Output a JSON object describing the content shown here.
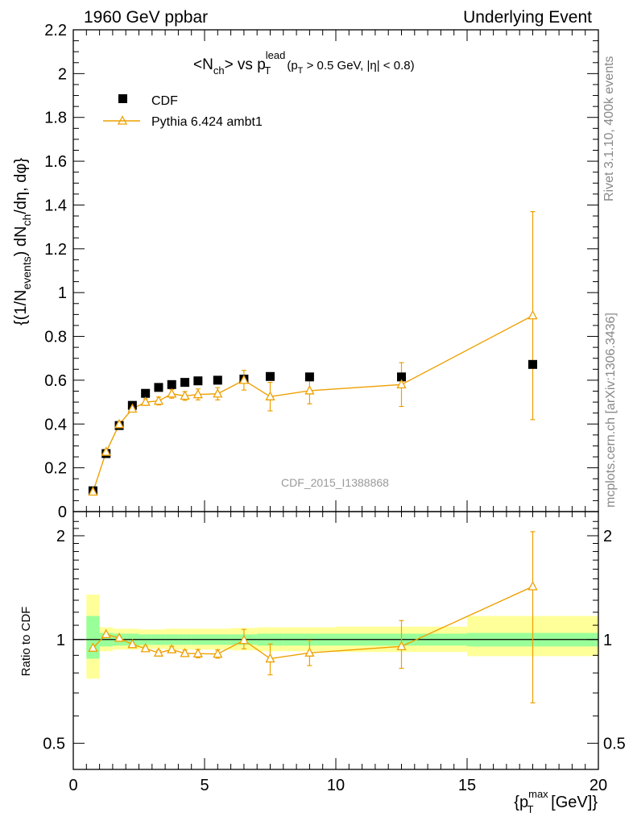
{
  "header": {
    "left": "1960 GeV ppbar",
    "right": "Underlying Event"
  },
  "side_labels": {
    "rivet": "Rivet 3.1.10,  400k events",
    "mcplots": "mcplots.cern.ch [arXiv:1306.3436]"
  },
  "colors": {
    "mc": "#eea000",
    "data": "#000000",
    "band_inner": "#99ff99",
    "band_outer": "#ffff99"
  },
  "chart_data": [
    {
      "type": "scatter",
      "title_parts": {
        "a": "<N",
        "a_sub": "ch",
        "b": "> vs p",
        "b_sup": "lead",
        "b_sub": "T",
        "c": "(p",
        "c_sub": "T",
        "d": " > 0.5 GeV, |η| < 0.8)"
      },
      "ylabel_parts": {
        "a": "{(1/N",
        "a_sub": "events",
        "b": ") dN",
        "b_sub": "ch",
        "c": "/dη, dφ}"
      },
      "watermark": "CDF_2015_I1388868",
      "xlim": [
        0,
        20
      ],
      "ylim": [
        0,
        2.2
      ],
      "yticks": [
        0,
        0.2,
        0.4,
        0.6,
        0.8,
        1,
        1.2,
        1.4,
        1.6,
        1.8,
        2,
        2.2
      ],
      "ytick_labels": [
        "0",
        "0.2",
        "0.4",
        "0.6",
        "0.8",
        "1",
        "1.2",
        "1.4",
        "1.6",
        "1.8",
        "2",
        "2.2"
      ],
      "legend": {
        "placement": "top-left",
        "entries": [
          "CDF",
          "Pythia 6.424 ambt1"
        ]
      },
      "series": [
        {
          "name": "CDF",
          "marker": "square",
          "x": [
            0.75,
            1.25,
            1.75,
            2.25,
            2.75,
            3.25,
            3.75,
            4.25,
            4.75,
            5.5,
            6.5,
            7.5,
            9.0,
            12.5,
            17.5
          ],
          "y": [
            0.095,
            0.265,
            0.393,
            0.485,
            0.54,
            0.567,
            0.58,
            0.59,
            0.597,
            0.6,
            0.605,
            0.617,
            0.615,
            0.615,
            0.672
          ]
        },
        {
          "name": "Pythia 6.424 ambt1",
          "marker": "triangle",
          "x": [
            0.75,
            1.25,
            1.75,
            2.25,
            2.75,
            3.25,
            3.75,
            4.25,
            4.75,
            5.5,
            6.5,
            7.5,
            9.0,
            12.5,
            17.5
          ],
          "y": [
            0.09,
            0.272,
            0.398,
            0.469,
            0.5,
            0.505,
            0.538,
            0.528,
            0.535,
            0.538,
            0.6,
            0.525,
            0.552,
            0.58,
            0.895
          ],
          "err": [
            0.005,
            0.008,
            0.01,
            0.013,
            0.015,
            0.018,
            0.02,
            0.02,
            0.025,
            0.028,
            0.045,
            0.065,
            0.06,
            0.1,
            0.475
          ]
        }
      ]
    },
    {
      "type": "scatter",
      "ylabel": "Ratio to CDF",
      "xlabel_parts": {
        "a": "{p",
        "a_sup": "max",
        "a_sub": "T",
        "b": " [GeV]}"
      },
      "xlim": [
        0,
        20
      ],
      "ylim": [
        0.42,
        2.35
      ],
      "ylog": true,
      "xticks": [
        0,
        5,
        10,
        15,
        20
      ],
      "xtick_labels": [
        "0",
        "5",
        "10",
        "15",
        "20"
      ],
      "yticks": [
        0.5,
        1,
        2
      ],
      "ytick_labels": [
        "0.5",
        "1",
        "2"
      ],
      "bands": {
        "edges": [
          0.5,
          1.0,
          1.5,
          2.0,
          2.5,
          3.0,
          3.5,
          4.0,
          4.5,
          5.0,
          6.0,
          7.0,
          8.0,
          10.0,
          15.0,
          20.0
        ],
        "inner_lo": [
          0.88,
          0.955,
          0.96,
          0.96,
          0.965,
          0.965,
          0.965,
          0.965,
          0.965,
          0.965,
          0.965,
          0.96,
          0.96,
          0.96,
          0.955
        ],
        "inner_hi": [
          1.17,
          1.045,
          1.04,
          1.04,
          1.035,
          1.035,
          1.035,
          1.035,
          1.035,
          1.035,
          1.035,
          1.04,
          1.04,
          1.04,
          1.045
        ],
        "outer_lo": [
          0.77,
          0.925,
          0.935,
          0.935,
          0.94,
          0.94,
          0.935,
          0.935,
          0.935,
          0.935,
          0.93,
          0.925,
          0.925,
          0.92,
          0.895
        ],
        "outer_hi": [
          1.35,
          1.085,
          1.075,
          1.075,
          1.07,
          1.07,
          1.075,
          1.075,
          1.075,
          1.075,
          1.08,
          1.085,
          1.085,
          1.09,
          1.17
        ]
      },
      "series": [
        {
          "name": "Pythia 6.424 ambt1",
          "x": [
            0.75,
            1.25,
            1.75,
            2.25,
            2.75,
            3.25,
            3.75,
            4.25,
            4.75,
            5.5,
            6.5,
            7.5,
            9.0,
            12.5,
            17.5
          ],
          "y": [
            0.945,
            1.035,
            1.01,
            0.968,
            0.942,
            0.915,
            0.935,
            0.912,
            0.91,
            0.908,
            0.995,
            0.88,
            0.915,
            0.955,
            1.425
          ],
          "err_lo": [
            0.01,
            0.01,
            0.01,
            0.01,
            0.015,
            0.015,
            0.02,
            0.02,
            0.025,
            0.025,
            0.055,
            0.09,
            0.075,
            0.13,
            0.77
          ],
          "err_hi": [
            0.01,
            0.01,
            0.01,
            0.01,
            0.015,
            0.015,
            0.02,
            0.02,
            0.025,
            0.025,
            0.075,
            0.09,
            0.08,
            0.18,
            0.63
          ]
        }
      ]
    }
  ]
}
